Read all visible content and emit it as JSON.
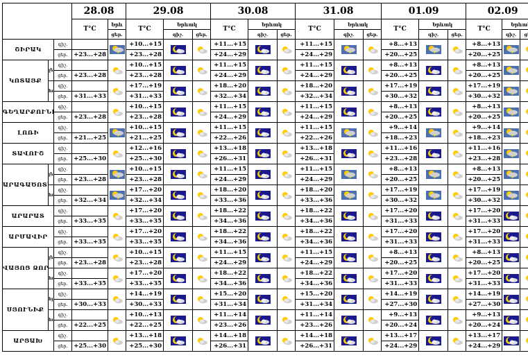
{
  "header": {
    "dates": [
      "28.08",
      "29.08",
      "30.08",
      "31.08",
      "01.09",
      "02.09"
    ],
    "temp_unit": "T°C",
    "day_label": "Երևակ",
    "partial_day_label": "Երև",
    "night_short": "գիշ.",
    "day_short": "ցեր.",
    "night_abbrev": "գիշ.",
    "day_abbrev": "ցեր."
  },
  "row_labels": {
    "night": "գիշ.",
    "day": "ցեր."
  },
  "sections": [
    {
      "name": "ՇԻՐԱԿ",
      "zones": [
        {
          "label": "",
          "n28": "",
          "d28": "+23...+28",
          "rows": [
            [
              "+10...+15",
              "+23...+28"
            ],
            [
              "+11...+15",
              "+24...+29"
            ],
            [
              "+11...+15",
              "+24...+29"
            ],
            [
              "+8...+13",
              "+20...+25"
            ],
            [
              "+8...+13",
              "+20...+25"
            ]
          ]
        }
      ]
    },
    {
      "name": "ԿՈՏԱՅՔ",
      "zones": [
        {
          "label": "լեռ.",
          "d28": "+23...+28",
          "rows": [
            [
              "+10...+15",
              "+23...+28"
            ],
            [
              "+11...+15",
              "+24...+29"
            ],
            [
              "+11...+15",
              "+24...+29"
            ],
            [
              "+8...+13",
              "+20...+25"
            ],
            [
              "+8...+13",
              "+20...+25"
            ]
          ]
        },
        {
          "label": "հովտ.",
          "d28": "+31...+33",
          "rows": [
            [
              "+17...+19",
              "+31...+33"
            ],
            [
              "+18...+20",
              "+32...+34"
            ],
            [
              "+18...+20",
              "+32...+34"
            ],
            [
              "+17...+19",
              "+30...+32"
            ],
            [
              "+17...+19",
              "+30...+32"
            ]
          ]
        }
      ]
    },
    {
      "name": "ԳԵՂԱՐՔՈՒՆԻՔ",
      "zones": [
        {
          "label": "",
          "d28": "+23...+28",
          "rows": [
            [
              "+10...+15",
              "+23...+28"
            ],
            [
              "+11...+15",
              "+24...+29"
            ],
            [
              "+11...+15",
              "+24...+29"
            ],
            [
              "+8...+13",
              "+20...+25"
            ],
            [
              "+8...+13",
              "+20...+25"
            ]
          ]
        }
      ]
    },
    {
      "name": "ԼՈՌԻ",
      "zones": [
        {
          "label": "",
          "d28": "+21...+25",
          "rows": [
            [
              "+10...+15",
              "+21...+25"
            ],
            [
              "+11...+15",
              "+22...+26"
            ],
            [
              "+11...+15",
              "+22...+26"
            ],
            [
              "+9...+14",
              "+18...+23"
            ],
            [
              "+9...+14",
              "+18...+23"
            ]
          ]
        }
      ]
    },
    {
      "name": "ՏԱՎՈՒՇ",
      "zones": [
        {
          "label": "",
          "d28": "+25...+30",
          "rows": [
            [
              "+12...+16",
              "+25...+30"
            ],
            [
              "+13...+18",
              "+26...+31"
            ],
            [
              "+13...+18",
              "+26...+31"
            ],
            [
              "+11...+16",
              "+23...+28"
            ],
            [
              "+11...+16",
              "+23...+28"
            ]
          ]
        }
      ]
    },
    {
      "name": "ԱՐԱԳԱԾՈՏՆ",
      "zones": [
        {
          "label": "լեռ.",
          "d28": "+23...+28",
          "rows": [
            [
              "+10...+15",
              "+23...+28"
            ],
            [
              "+11...+15",
              "+24...+29"
            ],
            [
              "+11...+15",
              "+24...+29"
            ],
            [
              "+8...+13",
              "+20...+25"
            ],
            [
              "+8...+13",
              "+20...+25"
            ]
          ]
        },
        {
          "label": "հովտ.",
          "d28": "+32...+34",
          "rows": [
            [
              "+17...+20",
              "+32...+34"
            ],
            [
              "+18...+20",
              "+33...+36"
            ],
            [
              "+18...+20",
              "+33...+36"
            ],
            [
              "+17...+19",
              "+30...+32"
            ],
            [
              "+17...+19",
              "+30...+32"
            ]
          ]
        }
      ]
    },
    {
      "name": "ԱՐԱՐԱՏ",
      "zones": [
        {
          "label": "",
          "d28": "+33...+35",
          "rows": [
            [
              "+17...+20",
              "+33...+35"
            ],
            [
              "+18...+22",
              "+34...+36"
            ],
            [
              "+18...+22",
              "+34...+36"
            ],
            [
              "+17...+20",
              "+31...+33"
            ],
            [
              "+17...+20",
              "+31...+33"
            ]
          ]
        }
      ]
    },
    {
      "name": "ԱՐՄԱՎԻՐ",
      "zones": [
        {
          "label": "",
          "d28": "+33...+35",
          "rows": [
            [
              "+17...+20",
              "+33...+35"
            ],
            [
              "+18...+22",
              "+34...+36"
            ],
            [
              "+18...+22",
              "+34...+36"
            ],
            [
              "+17...+20",
              "+31...+33"
            ],
            [
              "+17...+20",
              "+31...+33"
            ]
          ]
        }
      ]
    },
    {
      "name": "ՎԱՅՈՑ ՁՈՐ",
      "zones": [
        {
          "label": "լեռ.",
          "d28": "+23...+28",
          "rows": [
            [
              "+10...+15",
              "+23...+28"
            ],
            [
              "+11...+15",
              "+24...+29"
            ],
            [
              "+11...+15",
              "+24...+29"
            ],
            [
              "+8...+13",
              "+20...+25"
            ],
            [
              "+8...+13",
              "+20...+25"
            ]
          ]
        },
        {
          "label": "հովտ.",
          "d28": "+33...+35",
          "rows": [
            [
              "+17...+20",
              "+33...+35"
            ],
            [
              "+18...+22",
              "+34...+36"
            ],
            [
              "+18...+22",
              "+34...+36"
            ],
            [
              "+17...+20",
              "+31...+33"
            ],
            [
              "+17...+20",
              "+31...+33"
            ]
          ]
        }
      ]
    },
    {
      "name": "ՍՅՈՒՆԻՔ",
      "zones": [
        {
          "label": "հյուս.",
          "d28": "+30...+33",
          "rows": [
            [
              "+14...+19",
              "+30...+33"
            ],
            [
              "+15...+20",
              "+31...+34"
            ],
            [
              "+15...+20",
              "+31...+34"
            ],
            [
              "+14...+19",
              "+27...+30"
            ],
            [
              "+14...+19",
              "+27...+30"
            ]
          ]
        },
        {
          "label": "հարավ.",
          "d28": "+22...+25",
          "rows": [
            [
              "+10...+13",
              "+22...+25"
            ],
            [
              "+11...+14",
              "+23...+26"
            ],
            [
              "+11...+14",
              "+23...+26"
            ],
            [
              "+9...+13",
              "+20...+24"
            ],
            [
              "+9...+13",
              "+20...+24"
            ]
          ]
        }
      ]
    },
    {
      "name": "ԱՐՑԱԽ",
      "zones": [
        {
          "label": "",
          "d28": "+25...+30",
          "rows": [
            [
              "+13...+18",
              "+25...+30"
            ],
            [
              "+14...+18",
              "+26...+31"
            ],
            [
              "+14...+18",
              "+26...+31"
            ],
            [
              "+13...+17",
              "+24...+29"
            ],
            [
              "+13...+17",
              "+24...+29"
            ]
          ]
        }
      ]
    }
  ],
  "icons": {
    "night": "moon-cloud-icon",
    "day": "sun-cloud-icon",
    "storm": "thunderstorm-icon"
  },
  "colors": {
    "night_bg": "#1a1a8c",
    "moon": "#f5d300",
    "sun": "#ffcc00",
    "cloud": "#dcdcdc"
  }
}
